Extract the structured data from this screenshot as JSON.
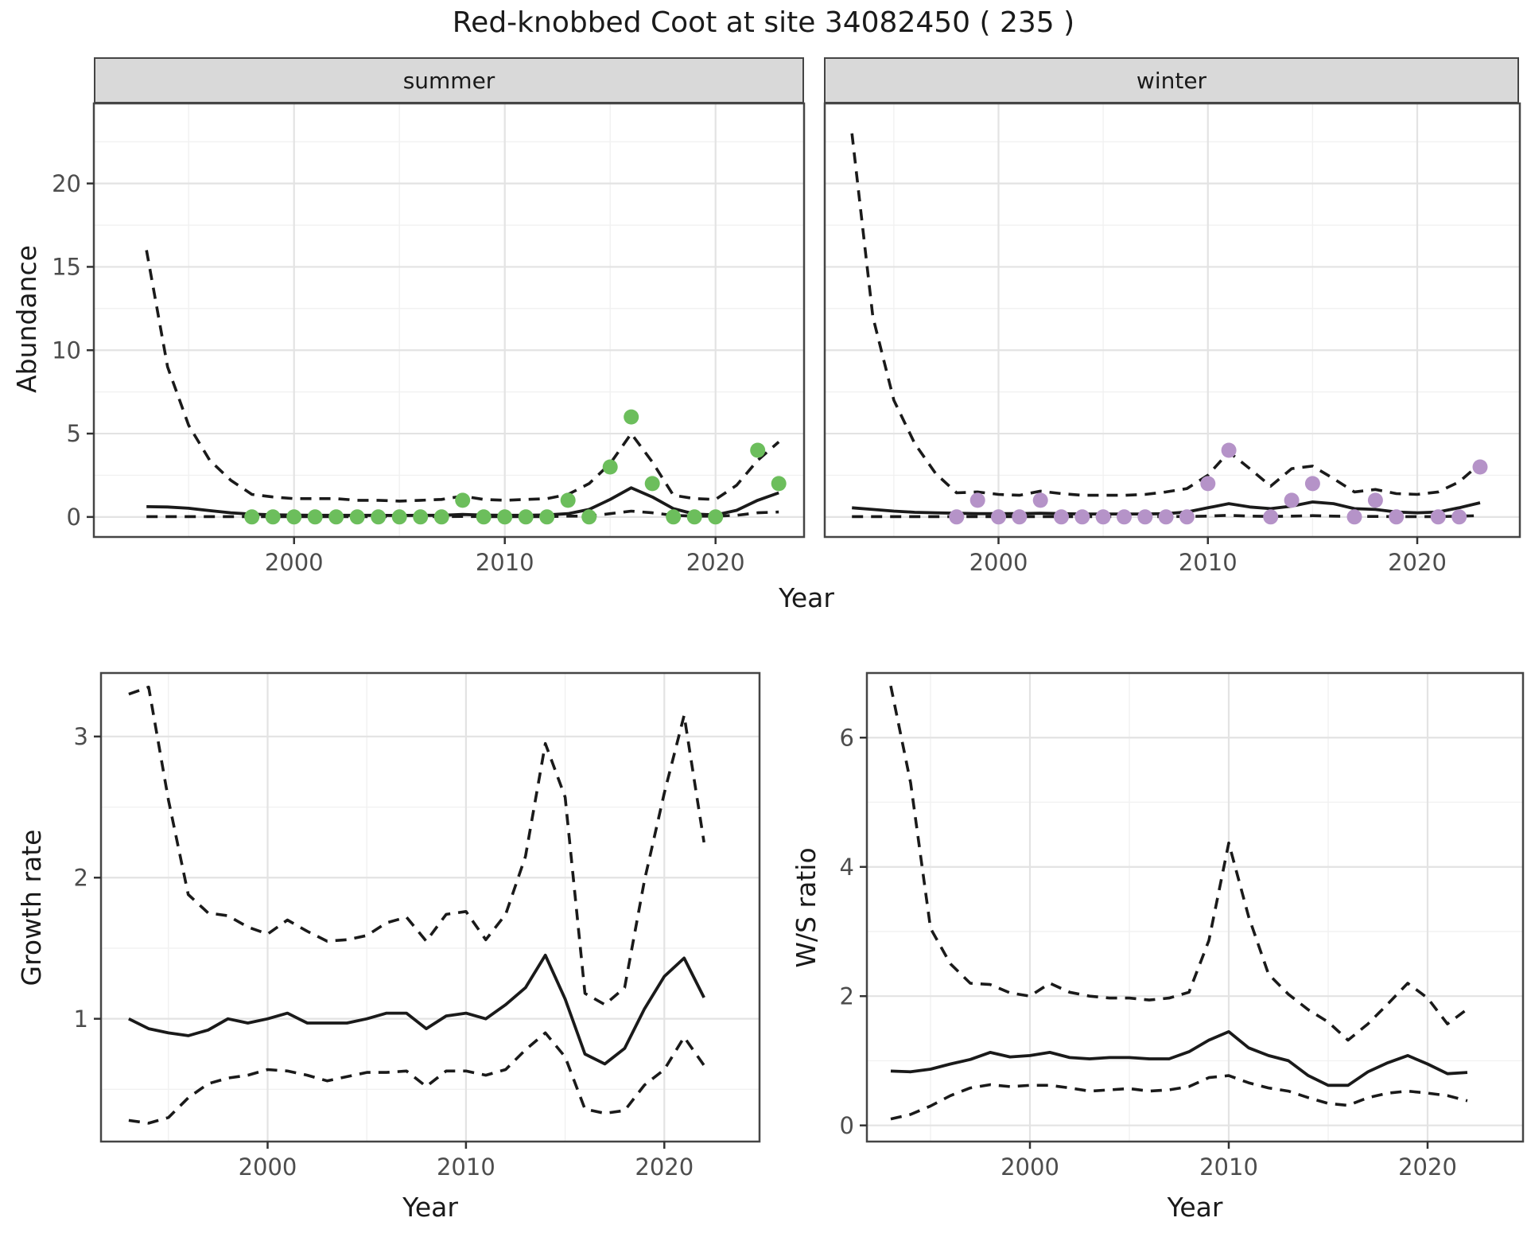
{
  "title": "Red-knobbed Coot at site 34082450 ( 235 )",
  "axes": {
    "abundance_label": "Abundance",
    "year_label": "Year",
    "growth_label": "Growth rate",
    "ws_label": "W/S ratio"
  },
  "colors": {
    "summer_points": "#6cbe5c",
    "winter_points": "#b593c8",
    "line": "#1a1a1a",
    "strip_bg": "#d9d9d9",
    "grid_major": "#e3e3e3",
    "grid_minor": "#f1f1f1",
    "panel_border": "#454545",
    "axis_text": "#4d4d4d"
  },
  "chart_data": [
    {
      "id": "summer-abundance",
      "type": "line",
      "facet": "summer",
      "xlabel": "Year",
      "ylabel": "Abundance",
      "x": [
        1993,
        1994,
        1995,
        1996,
        1997,
        1998,
        1999,
        2000,
        2001,
        2002,
        2003,
        2004,
        2005,
        2006,
        2007,
        2008,
        2009,
        2010,
        2011,
        2012,
        2013,
        2014,
        2015,
        2016,
        2017,
        2018,
        2019,
        2020,
        2021,
        2022,
        2023
      ],
      "series": [
        {
          "name": "mean",
          "style": "solid",
          "values": [
            0.62,
            0.6,
            0.52,
            0.38,
            0.25,
            0.17,
            0.13,
            0.11,
            0.1,
            0.1,
            0.1,
            0.1,
            0.09,
            0.1,
            0.1,
            0.15,
            0.11,
            0.1,
            0.1,
            0.12,
            0.2,
            0.45,
            1.05,
            1.75,
            1.2,
            0.5,
            0.18,
            0.12,
            0.4,
            1.0,
            1.45
          ]
        },
        {
          "name": "upper-ci",
          "style": "dashed",
          "values": [
            16.0,
            9.0,
            5.5,
            3.4,
            2.2,
            1.35,
            1.2,
            1.1,
            1.1,
            1.1,
            1.0,
            1.0,
            0.95,
            1.0,
            1.05,
            1.25,
            1.05,
            1.0,
            1.05,
            1.1,
            1.35,
            2.0,
            3.2,
            5.0,
            3.3,
            1.3,
            1.1,
            1.05,
            1.9,
            3.4,
            4.5
          ]
        },
        {
          "name": "lower-ci",
          "style": "dashed",
          "values": [
            0.02,
            0.02,
            0.02,
            0.02,
            0.02,
            0.02,
            0.02,
            0.02,
            0.02,
            0.02,
            0.02,
            0.02,
            0.02,
            0.02,
            0.02,
            0.03,
            0.02,
            0.02,
            0.02,
            0.02,
            0.05,
            0.05,
            0.2,
            0.35,
            0.25,
            0.1,
            0.05,
            0.05,
            0.1,
            0.25,
            0.3
          ]
        }
      ],
      "points": {
        "years": [
          1998,
          1999,
          2000,
          2001,
          2002,
          2003,
          2004,
          2005,
          2006,
          2007,
          2008,
          2009,
          2010,
          2011,
          2012,
          2013,
          2014,
          2015,
          2016,
          2017,
          2018,
          2019,
          2020,
          2022,
          2023
        ],
        "values": [
          0,
          0,
          0,
          0,
          0,
          0,
          0,
          0,
          0,
          0,
          1,
          0,
          0,
          0,
          0,
          1,
          0,
          3,
          6,
          2,
          0,
          0,
          0,
          4,
          2
        ]
      },
      "point_color": "#6cbe5c",
      "xticks": [
        2000,
        2010,
        2020
      ],
      "xminor": [
        1995,
        2005,
        2015
      ],
      "yticks": [
        0,
        5,
        10,
        15,
        20
      ],
      "yminor": [
        2.5,
        7.5,
        12.5,
        17.5,
        22.5
      ],
      "xlim": [
        1990.5,
        2024.2
      ],
      "ylim": [
        -1.2,
        24.8
      ]
    },
    {
      "id": "winter-abundance",
      "type": "line",
      "facet": "winter",
      "xlabel": "Year",
      "ylabel": "Abundance",
      "x": [
        1993,
        1994,
        1995,
        1996,
        1997,
        1998,
        1999,
        2000,
        2001,
        2002,
        2003,
        2004,
        2005,
        2006,
        2007,
        2008,
        2009,
        2010,
        2011,
        2012,
        2013,
        2014,
        2015,
        2016,
        2017,
        2018,
        2019,
        2020,
        2021,
        2022,
        2023
      ],
      "series": [
        {
          "name": "mean",
          "style": "solid",
          "values": [
            0.55,
            0.45,
            0.35,
            0.28,
            0.25,
            0.22,
            0.2,
            0.2,
            0.2,
            0.22,
            0.2,
            0.18,
            0.18,
            0.18,
            0.18,
            0.2,
            0.3,
            0.55,
            0.8,
            0.6,
            0.5,
            0.65,
            0.9,
            0.8,
            0.5,
            0.45,
            0.3,
            0.25,
            0.3,
            0.55,
            0.85
          ]
        },
        {
          "name": "upper-ci",
          "style": "dashed",
          "values": [
            23.0,
            12.0,
            7.0,
            4.4,
            2.6,
            1.45,
            1.5,
            1.35,
            1.3,
            1.55,
            1.4,
            1.3,
            1.3,
            1.3,
            1.35,
            1.5,
            1.7,
            2.5,
            3.9,
            2.9,
            1.85,
            2.9,
            3.05,
            2.3,
            1.5,
            1.65,
            1.4,
            1.35,
            1.5,
            2.1,
            3.2
          ]
        },
        {
          "name": "lower-ci",
          "style": "dashed",
          "values": [
            0.02,
            0.02,
            0.02,
            0.02,
            0.02,
            0.02,
            0.02,
            0.02,
            0.02,
            0.02,
            0.02,
            0.02,
            0.02,
            0.02,
            0.02,
            0.02,
            0.03,
            0.05,
            0.1,
            0.05,
            0.03,
            0.05,
            0.08,
            0.05,
            0.03,
            0.03,
            0.02,
            0.02,
            0.02,
            0.05,
            0.08
          ]
        }
      ],
      "points": {
        "years": [
          1998,
          1999,
          2000,
          2001,
          2002,
          2003,
          2004,
          2005,
          2006,
          2007,
          2008,
          2009,
          2010,
          2011,
          2013,
          2014,
          2015,
          2017,
          2018,
          2019,
          2021,
          2022,
          2023
        ],
        "values": [
          0,
          1,
          0,
          0,
          1,
          0,
          0,
          0,
          0,
          0,
          0,
          0,
          2,
          4,
          0,
          1,
          2,
          0,
          1,
          0,
          0,
          0,
          3
        ]
      },
      "point_color": "#b593c8",
      "xticks": [
        2000,
        2010,
        2020
      ],
      "xminor": [
        1995,
        2005,
        2015
      ],
      "yticks": [],
      "yminor": [
        2.5,
        7.5,
        12.5,
        17.5,
        22.5
      ],
      "ytick_grid": [
        0,
        5,
        10,
        15,
        20
      ],
      "xlim": [
        1991.7,
        2024.9
      ],
      "ylim": [
        -1.2,
        24.8
      ]
    },
    {
      "id": "growth-rate",
      "type": "line",
      "facet": null,
      "xlabel": "Year",
      "ylabel": "Growth rate",
      "x": [
        1993,
        1994,
        1995,
        1996,
        1997,
        1998,
        1999,
        2000,
        2001,
        2002,
        2003,
        2004,
        2005,
        2006,
        2007,
        2008,
        2009,
        2010,
        2011,
        2012,
        2013,
        2014,
        2015,
        2016,
        2017,
        2018,
        2019,
        2020,
        2021,
        2022
      ],
      "series": [
        {
          "name": "mean",
          "style": "solid",
          "values": [
            1.0,
            0.93,
            0.9,
            0.88,
            0.92,
            1.0,
            0.97,
            1.0,
            1.04,
            0.97,
            0.97,
            0.97,
            1.0,
            1.04,
            1.04,
            0.93,
            1.02,
            1.04,
            1.0,
            1.1,
            1.22,
            1.45,
            1.14,
            0.75,
            0.68,
            0.79,
            1.07,
            1.3,
            1.43,
            1.15
          ]
        },
        {
          "name": "upper-ci",
          "style": "dashed",
          "values": [
            3.3,
            3.35,
            2.55,
            1.88,
            1.75,
            1.73,
            1.65,
            1.6,
            1.7,
            1.62,
            1.55,
            1.56,
            1.59,
            1.68,
            1.72,
            1.55,
            1.74,
            1.76,
            1.56,
            1.74,
            2.15,
            2.95,
            2.57,
            1.18,
            1.1,
            1.22,
            1.98,
            2.6,
            3.15,
            2.25
          ]
        },
        {
          "name": "lower-ci",
          "style": "dashed",
          "values": [
            0.28,
            0.26,
            0.3,
            0.44,
            0.54,
            0.58,
            0.6,
            0.64,
            0.63,
            0.6,
            0.56,
            0.59,
            0.62,
            0.62,
            0.63,
            0.52,
            0.63,
            0.63,
            0.6,
            0.64,
            0.78,
            0.9,
            0.73,
            0.36,
            0.33,
            0.35,
            0.53,
            0.64,
            0.87,
            0.67
          ]
        }
      ],
      "points": {
        "years": [],
        "values": []
      },
      "point_color": "#1a1a1a",
      "xticks": [
        2000,
        2010,
        2020
      ],
      "xminor": [
        1995,
        2005,
        2015
      ],
      "yticks": [
        1,
        2,
        3
      ],
      "yminor": [
        0.5,
        1.5,
        2.5
      ],
      "xlim": [
        1991.6,
        2024.8
      ],
      "ylim": [
        0.13,
        3.45
      ]
    },
    {
      "id": "ws-ratio",
      "type": "line",
      "facet": null,
      "xlabel": "Year",
      "ylabel": "W/S ratio",
      "x": [
        1993,
        1994,
        1995,
        1996,
        1997,
        1998,
        1999,
        2000,
        2001,
        2002,
        2003,
        2004,
        2005,
        2006,
        2007,
        2008,
        2009,
        2010,
        2011,
        2012,
        2013,
        2014,
        2015,
        2016,
        2017,
        2018,
        2019,
        2020,
        2021,
        2022
      ],
      "series": [
        {
          "name": "mean",
          "style": "solid",
          "values": [
            0.84,
            0.83,
            0.87,
            0.95,
            1.02,
            1.13,
            1.06,
            1.08,
            1.13,
            1.05,
            1.03,
            1.05,
            1.05,
            1.03,
            1.03,
            1.14,
            1.32,
            1.45,
            1.2,
            1.08,
            1.0,
            0.77,
            0.62,
            0.62,
            0.83,
            0.97,
            1.08,
            0.95,
            0.8,
            0.82
          ]
        },
        {
          "name": "upper-ci",
          "style": "dashed",
          "values": [
            6.8,
            5.3,
            3.05,
            2.5,
            2.2,
            2.18,
            2.05,
            2.0,
            2.2,
            2.06,
            2.0,
            1.97,
            1.97,
            1.94,
            1.97,
            2.06,
            2.86,
            4.37,
            3.23,
            2.34,
            2.03,
            1.79,
            1.6,
            1.32,
            1.57,
            1.88,
            2.2,
            1.97,
            1.57,
            1.8
          ]
        },
        {
          "name": "lower-ci",
          "style": "dashed",
          "values": [
            0.1,
            0.17,
            0.3,
            0.46,
            0.58,
            0.63,
            0.6,
            0.62,
            0.62,
            0.58,
            0.53,
            0.55,
            0.57,
            0.53,
            0.55,
            0.6,
            0.74,
            0.77,
            0.66,
            0.58,
            0.53,
            0.43,
            0.34,
            0.31,
            0.43,
            0.5,
            0.53,
            0.5,
            0.46,
            0.38
          ]
        }
      ],
      "points": {
        "years": [],
        "values": []
      },
      "point_color": "#1a1a1a",
      "xticks": [
        2000,
        2010,
        2020
      ],
      "xminor": [
        1995,
        2005,
        2015
      ],
      "yticks": [
        0,
        2,
        4,
        6
      ],
      "yminor": [
        1,
        3,
        5
      ],
      "xlim": [
        1991.8,
        2024.8
      ],
      "ylim": [
        -0.25,
        7.0
      ]
    }
  ]
}
